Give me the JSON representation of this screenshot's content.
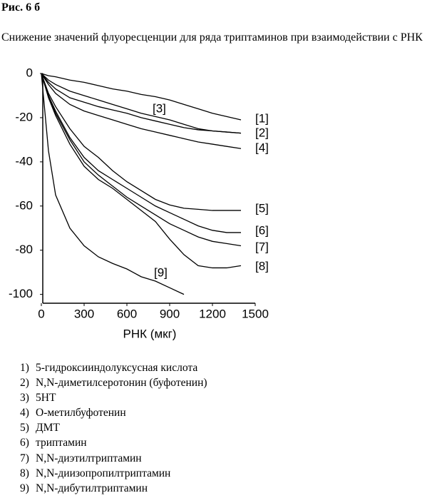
{
  "header": {
    "title": "Рис. 6 б",
    "caption": "Снижение значений флуоресценции для ряда триптаминов при взаимодействии с РНК"
  },
  "chart_data": {
    "type": "line",
    "xlabel": "РНК (мкг)",
    "x": [
      0,
      50,
      100,
      200,
      300,
      400,
      500,
      600,
      700,
      800,
      900,
      1000,
      1100,
      1200,
      1300,
      1400
    ],
    "xlim": [
      0,
      1500
    ],
    "xticks": [
      0,
      300,
      600,
      900,
      1200,
      1500
    ],
    "ylim": [
      -104,
      0
    ],
    "yticks": [
      0,
      -20,
      -40,
      -60,
      -80,
      -100
    ],
    "series": [
      {
        "name": "[1]",
        "color": "#000000",
        "values": [
          0,
          -1,
          -1.5,
          -3,
          -4,
          -5.5,
          -7,
          -8,
          -9.5,
          -10.5,
          -12,
          -14,
          -16,
          -18,
          -19.5,
          -21
        ]
      },
      {
        "name": "[2]",
        "color": "#000000",
        "values": [
          0,
          -4,
          -7,
          -11,
          -13,
          -15,
          -16.5,
          -18,
          -20,
          -21.5,
          -23,
          -24.5,
          -25.5,
          -26,
          -26.5,
          -27
        ]
      },
      {
        "name": "[3]",
        "color": "#000000",
        "values": [
          0,
          -3,
          -5,
          -8,
          -10,
          -12,
          -14,
          -16,
          -18,
          -19.5,
          -21,
          -23,
          -25,
          -26,
          -26.5,
          -27
        ]
      },
      {
        "name": "[4]",
        "color": "#000000",
        "values": [
          0,
          -5,
          -9,
          -14,
          -17,
          -19,
          -21,
          -23,
          -25,
          -26.5,
          -28,
          -29.5,
          -31,
          -32,
          -33,
          -34
        ]
      },
      {
        "name": "[5]",
        "color": "#000000",
        "values": [
          0,
          -9,
          -15,
          -25,
          -33,
          -38,
          -44,
          -49,
          -53,
          -57,
          -59.5,
          -61,
          -61.5,
          -62,
          -62,
          -62
        ]
      },
      {
        "name": "[6]",
        "color": "#000000",
        "values": [
          0,
          -10,
          -17,
          -29,
          -38,
          -44,
          -48,
          -52,
          -56,
          -60,
          -63,
          -66,
          -69,
          -71,
          -72,
          -72
        ]
      },
      {
        "name": "[7]",
        "color": "#000000",
        "values": [
          0,
          -10,
          -18,
          -30,
          -40,
          -46,
          -51,
          -56,
          -60,
          -64,
          -68,
          -71,
          -74,
          -76,
          -77,
          -78
        ]
      },
      {
        "name": "[8]",
        "color": "#000000",
        "values": [
          0,
          -11,
          -19,
          -32,
          -42,
          -48,
          -52,
          -57,
          -62,
          -67,
          -75,
          -82,
          -87,
          -88,
          -88,
          -87
        ]
      },
      {
        "name": "[9]",
        "color": "#000000",
        "values": [
          0,
          -35,
          -55,
          -70,
          -78,
          -83,
          -86,
          -88.5,
          -92,
          -94,
          -97,
          -100,
          null,
          null,
          null,
          null
        ]
      }
    ]
  },
  "legend_list": [
    {
      "num": "1)",
      "text": "5-гидроксииндолуксусная кислота"
    },
    {
      "num": "2)",
      "text": "N,N-диметилсеротонин (буфотенин)"
    },
    {
      "num": "3)",
      "text": "5HT"
    },
    {
      "num": "4)",
      "text": "O-метилбуфотенин"
    },
    {
      "num": "5)",
      "text": "ДМТ"
    },
    {
      "num": "6)",
      "text": "триптамин"
    },
    {
      "num": "7)",
      "text": "N,N-диэтилтриптамин"
    },
    {
      "num": "8)",
      "text": "N,N-диизопропилтриптамин"
    },
    {
      "num": "9)",
      "text": "N,N-дибутилтриптамин"
    }
  ]
}
